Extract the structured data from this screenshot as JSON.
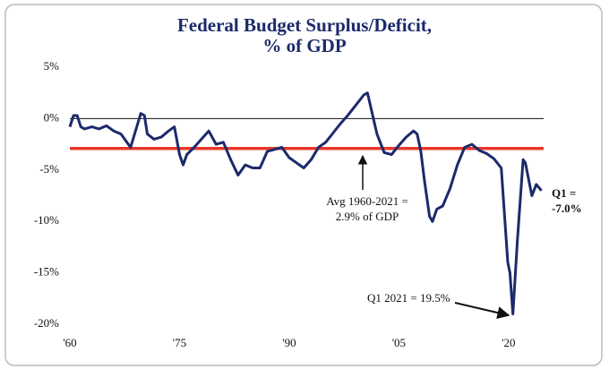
{
  "chart_data": {
    "type": "line",
    "title": [
      "Federal Budget Surplus/Deficit,",
      "% of GDP"
    ],
    "x": [
      1960,
      1960.5,
      1961,
      1961.5,
      1962,
      1963,
      1964,
      1965,
      1966,
      1967,
      1968.3,
      1969.7,
      1970.2,
      1970.6,
      1971.5,
      1972.5,
      1973.5,
      1974.3,
      1975,
      1975.5,
      1976,
      1977,
      1978,
      1979,
      1980,
      1981,
      1982,
      1983,
      1984,
      1985,
      1986,
      1987,
      1988,
      1989,
      1990,
      1991,
      1992,
      1993,
      1994,
      1995,
      1996,
      1997,
      1998,
      1999,
      2000.2,
      2000.7,
      2001.2,
      2002,
      2003,
      2004,
      2005,
      2006,
      2007,
      2007.5,
      2008,
      2008.5,
      2009.2,
      2009.6,
      2010.2,
      2011,
      2012,
      2013,
      2014,
      2015,
      2016,
      2017,
      2018,
      2019,
      2019.9,
      2020.2,
      2020.6,
      2021.2,
      2022,
      2022.3,
      2023.2,
      2023.8,
      2024.5
    ],
    "values": [
      -0.8,
      0.3,
      0.3,
      -0.8,
      -1.0,
      -0.8,
      -1.0,
      -0.7,
      -1.2,
      -1.5,
      -2.8,
      0.5,
      0.3,
      -1.5,
      -2.0,
      -1.8,
      -1.2,
      -0.8,
      -3.5,
      -4.5,
      -3.5,
      -2.8,
      -2.0,
      -1.2,
      -2.5,
      -2.3,
      -4.0,
      -5.5,
      -4.5,
      -4.8,
      -4.8,
      -3.2,
      -3.0,
      -2.8,
      -3.8,
      -4.3,
      -4.8,
      -4.0,
      -2.8,
      -2.3,
      -1.4,
      -0.5,
      0.3,
      1.2,
      2.3,
      2.5,
      1.0,
      -1.5,
      -3.3,
      -3.5,
      -2.6,
      -1.8,
      -1.2,
      -1.5,
      -3.2,
      -6.0,
      -9.5,
      -10.0,
      -8.8,
      -8.5,
      -6.8,
      -4.5,
      -2.8,
      -2.5,
      -3.1,
      -3.4,
      -3.9,
      -4.8,
      -14.0,
      -15.0,
      -19.0,
      -12.0,
      -4.0,
      -4.3,
      -7.5,
      -6.4,
      -7.0
    ],
    "color": "#1c2a6b",
    "xlim": [
      1960,
      2024.8
    ],
    "xticks": [
      {
        "value": 1960,
        "label": "'60"
      },
      {
        "value": 1975,
        "label": "'75"
      },
      {
        "value": 1990,
        "label": "'90"
      },
      {
        "value": 2005,
        "label": "'05"
      },
      {
        "value": 2020,
        "label": "'20"
      }
    ],
    "ylim": [
      -20,
      5
    ],
    "yticks": [
      {
        "value": 5,
        "label": "5%"
      },
      {
        "value": 0,
        "label": "0%"
      },
      {
        "value": -5,
        "label": "-5%"
      },
      {
        "value": -10,
        "label": "-10%"
      },
      {
        "value": -15,
        "label": "-15%"
      },
      {
        "value": -20,
        "label": "-20%"
      }
    ],
    "zero_line": true,
    "reference_line": {
      "value": -2.9,
      "color": "#e8392c"
    },
    "annotations": [
      {
        "lines": [
          "Avg 1960-2021 =",
          "2.9% of GDP"
        ]
      },
      {
        "lines": [
          "Q1 =",
          "-7.0%"
        ]
      },
      {
        "lines": [
          "Q1 2021 = 19.5%"
        ]
      }
    ]
  }
}
